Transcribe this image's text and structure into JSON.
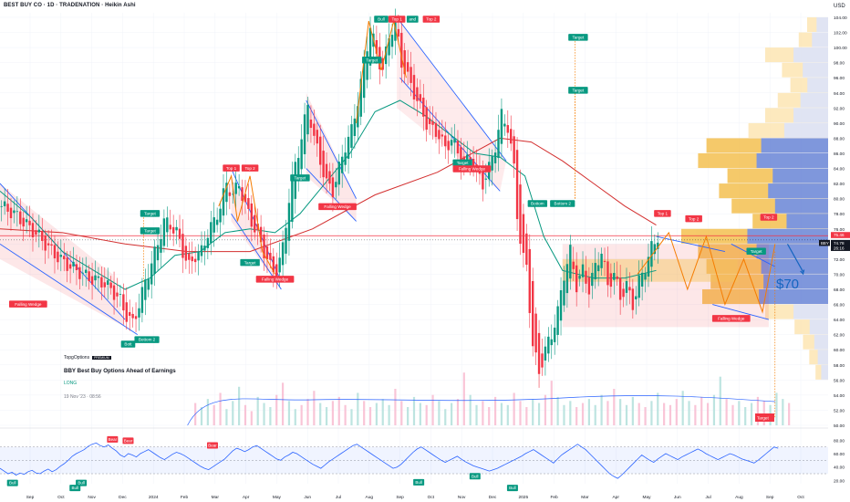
{
  "header": {
    "title": "BEST BUY CO · 1D · TRADENATION · Heikin Ashi",
    "currency": "USD"
  },
  "idea_card": {
    "brand": "TopgOptions",
    "badge": "PREMIUM",
    "title": "BBY Best Buy Options Ahead of Earnings",
    "direction": "LONG",
    "date": "19 Nov '23 · 08:56"
  },
  "annotation": "$70",
  "price_tags": [
    {
      "value": "75.46",
      "color": "#f23645"
    },
    {
      "value": "74.78",
      "color": "#131722"
    },
    {
      "value": "26:16",
      "color": "#131722"
    }
  ],
  "symbol_badge": "BBY",
  "volume_tag": {
    "label": "Target",
    "color": "#f23645"
  },
  "chart_data": [
    {
      "type": "candlestick",
      "x_ticks": [
        "Sep",
        "Oct",
        "Nov",
        "Dec",
        "2024",
        "Feb",
        "Mar",
        "Apr",
        "May",
        "Jun",
        "Jul",
        "Aug",
        "Sep",
        "Oct",
        "Nov",
        "Dec",
        "2025",
        "Feb",
        "Mar",
        "Apr",
        "May",
        "Jun",
        "Jul",
        "Aug",
        "Sep",
        "Oct"
      ],
      "y_ticks": [
        "104.00",
        "102.00",
        "100.00",
        "98.00",
        "96.00",
        "94.00",
        "92.00",
        "90.00",
        "88.00",
        "86.00",
        "84.00",
        "82.00",
        "80.00",
        "78.00",
        "76.00",
        "74.00",
        "72.00",
        "70.00",
        "68.00",
        "66.00",
        "64.00",
        "62.00",
        "60.00",
        "58.00",
        "56.00",
        "54.00",
        "52.00",
        "50.00"
      ],
      "ylim": [
        50,
        104.6
      ],
      "grid": true,
      "close_path": [
        [
          0,
          79
        ],
        [
          4,
          78
        ],
        [
          8,
          76.5
        ],
        [
          12,
          75
        ],
        [
          16,
          73
        ],
        [
          20,
          71.5
        ],
        [
          24,
          70.5
        ],
        [
          28,
          69.5
        ],
        [
          32,
          69
        ],
        [
          35,
          68
        ],
        [
          38,
          66.5
        ],
        [
          40,
          64.5
        ],
        [
          42,
          63.5
        ],
        [
          44,
          66
        ],
        [
          46,
          69
        ],
        [
          48,
          71.5
        ],
        [
          50,
          74
        ],
        [
          52,
          77
        ],
        [
          54,
          76.5
        ],
        [
          56,
          75.5
        ],
        [
          58,
          73
        ],
        [
          60,
          71
        ],
        [
          62,
          72.5
        ],
        [
          64,
          73
        ],
        [
          66,
          75.5
        ],
        [
          68,
          77
        ],
        [
          70,
          79
        ],
        [
          72,
          82
        ],
        [
          74,
          80.5
        ],
        [
          76,
          82
        ],
        [
          78,
          79
        ],
        [
          80,
          77
        ],
        [
          82,
          75
        ],
        [
          84,
          73
        ],
        [
          86,
          71
        ],
        [
          88,
          70
        ],
        [
          90,
          73.5
        ],
        [
          92,
          80
        ],
        [
          94,
          84.5
        ],
        [
          96,
          88
        ],
        [
          98,
          92.5
        ],
        [
          100,
          88
        ],
        [
          102,
          85
        ],
        [
          104,
          82
        ],
        [
          106,
          81
        ],
        [
          108,
          84
        ],
        [
          110,
          87
        ],
        [
          112,
          89
        ],
        [
          114,
          93
        ],
        [
          116,
          97.5
        ],
        [
          118,
          103
        ],
        [
          120,
          99
        ],
        [
          122,
          97
        ],
        [
          124,
          101.5
        ],
        [
          126,
          103.5
        ],
        [
          128,
          98
        ],
        [
          130,
          96
        ],
        [
          132,
          94
        ],
        [
          134,
          92
        ],
        [
          136,
          90
        ],
        [
          138,
          89
        ],
        [
          140,
          88.5
        ],
        [
          142,
          86.5
        ],
        [
          144,
          88
        ],
        [
          146,
          86
        ],
        [
          148,
          84.5
        ],
        [
          150,
          85.5
        ],
        [
          152,
          83.5
        ],
        [
          154,
          82
        ],
        [
          156,
          84
        ],
        [
          158,
          87
        ],
        [
          160,
          91
        ],
        [
          162,
          89.5
        ],
        [
          164,
          84
        ],
        [
          165,
          78
        ],
        [
          166,
          74.5
        ],
        [
          167,
          72
        ],
        [
          168,
          71
        ],
        [
          170,
          60.5
        ],
        [
          172,
          57
        ],
        [
          174,
          60
        ],
        [
          176,
          62
        ],
        [
          178,
          65
        ],
        [
          180,
          70
        ],
        [
          182,
          73
        ],
        [
          184,
          68.5
        ],
        [
          186,
          70.5
        ],
        [
          188,
          68
        ],
        [
          190,
          71
        ],
        [
          192,
          73
        ],
        [
          194,
          68.5
        ],
        [
          196,
          70
        ],
        [
          198,
          67
        ],
        [
          200,
          68.5
        ],
        [
          202,
          66
        ],
        [
          204,
          69
        ],
        [
          206,
          71
        ],
        [
          208,
          73.5
        ],
        [
          210,
          75
        ]
      ],
      "moving_average_50": [
        [
          0,
          81
        ],
        [
          10,
          77.5
        ],
        [
          20,
          73
        ],
        [
          30,
          70.5
        ],
        [
          40,
          68
        ],
        [
          48,
          69.5
        ],
        [
          56,
          72.5
        ],
        [
          64,
          73
        ],
        [
          72,
          75.5
        ],
        [
          80,
          76
        ],
        [
          88,
          75.5
        ],
        [
          96,
          78
        ],
        [
          104,
          82
        ],
        [
          112,
          86
        ],
        [
          120,
          91.5
        ],
        [
          128,
          93
        ],
        [
          136,
          91
        ],
        [
          144,
          88.5
        ],
        [
          152,
          86
        ],
        [
          160,
          85.5
        ],
        [
          168,
          83
        ],
        [
          174,
          75
        ],
        [
          180,
          70.5
        ],
        [
          190,
          69.5
        ],
        [
          200,
          69.5
        ],
        [
          210,
          70.5
        ]
      ],
      "moving_average_200": [
        [
          0,
          76
        ],
        [
          20,
          75.5
        ],
        [
          40,
          74
        ],
        [
          60,
          73
        ],
        [
          80,
          73
        ],
        [
          100,
          76
        ],
        [
          120,
          80.5
        ],
        [
          140,
          83.5
        ],
        [
          160,
          88
        ],
        [
          170,
          87.5
        ],
        [
          180,
          85
        ],
        [
          190,
          82
        ],
        [
          200,
          79
        ],
        [
          210,
          76.5
        ]
      ],
      "patterns": [
        {
          "label": "Falling Wedge",
          "x": 9,
          "y": 66.5
        },
        {
          "label": "Bott",
          "x": 41,
          "y": 61.2
        },
        {
          "label": "Bottom 2",
          "x": 47,
          "y": 61.8
        },
        {
          "label": "Target",
          "x": 48,
          "y": 78.5
        },
        {
          "label": "Target",
          "x": 48,
          "y": 76.2
        },
        {
          "label": "Top 1",
          "x": 74,
          "y": 84.5
        },
        {
          "label": "Top 2",
          "x": 80,
          "y": 84.5
        },
        {
          "label": "Target",
          "x": 80,
          "y": 72
        },
        {
          "label": "Falling Wedge",
          "x": 88,
          "y": 69.8
        },
        {
          "label": "Target",
          "x": 96,
          "y": 83.2
        },
        {
          "label": "Falling Wedge",
          "x": 108,
          "y": 79.4
        },
        {
          "label": "Target",
          "x": 119,
          "y": 98.8
        },
        {
          "label": "Bull",
          "x": 122,
          "y": 104.2
        },
        {
          "label": "Top 1",
          "x": 127,
          "y": 104.2
        },
        {
          "label": "and",
          "x": 132,
          "y": 104.2
        },
        {
          "label": "Top 2",
          "x": 138,
          "y": 104.2
        },
        {
          "label": "Target",
          "x": 148,
          "y": 85.2
        },
        {
          "label": "Falling Wedge",
          "x": 151,
          "y": 84.4
        },
        {
          "label": "Bottom",
          "x": 172,
          "y": 79.8
        },
        {
          "label": "Bottom 2",
          "x": 180,
          "y": 79.8
        },
        {
          "label": "Target",
          "x": 185,
          "y": 101.8
        },
        {
          "label": "Target",
          "x": 185,
          "y": 94.8
        },
        {
          "label": "Top 1",
          "x": 212,
          "y": 78.5
        },
        {
          "label": "Top 2",
          "x": 222,
          "y": 77.8
        },
        {
          "label": "Top 2",
          "x": 246,
          "y": 78
        },
        {
          "label": "Target",
          "x": 242,
          "y": 73.5
        },
        {
          "label": "Falling Wedge",
          "x": 234,
          "y": 64.6
        }
      ]
    },
    {
      "type": "bar",
      "series": [
        {
          "values": [
            1.1,
            0.9,
            1.3,
            1.0,
            1.6,
            0.8,
            1.2,
            1.9,
            1.0,
            0.7,
            1.4,
            1.1,
            0.9,
            1.5,
            2.1,
            1.2,
            0.8,
            1.0,
            1.3,
            1.7,
            1.1,
            0.9,
            1.2,
            1.4,
            1.0,
            0.8,
            1.6,
            1.2,
            0.9,
            1.1,
            1.3,
            1.0,
            1.8,
            1.2,
            0.9,
            1.4,
            1.1,
            1.0,
            1.5,
            1.2,
            0.8,
            1.1,
            1.3,
            2.6,
            1.5,
            1.0,
            1.2,
            0.9,
            1.4,
            1.1,
            1.0,
            1.6,
            1.2,
            0.9,
            1.3,
            1.1,
            1.5,
            2.2,
            1.4,
            1.0,
            1.2,
            0.9,
            1.1,
            1.3,
            1.0,
            1.5,
            1.2,
            1.8,
            1.3,
            1.0,
            1.4,
            1.1,
            0.9,
            1.2,
            1.6,
            1.1,
            1.0,
            1.3,
            1.7,
            1.2,
            1.0,
            1.4,
            1.1,
            1.5,
            2.4,
            1.3,
            1.0,
            1.2,
            0.9,
            1.1,
            1.4,
            1.2,
            1.0,
            1.6,
            1.3,
            1.1
          ]
        }
      ]
    },
    {
      "type": "line",
      "y_ticks": [
        "80.00",
        "60.00",
        "40.00",
        "20.00"
      ],
      "ylim": [
        15,
        90
      ],
      "band": [
        30,
        70
      ],
      "series": [
        {
          "values": [
            38,
            34,
            30,
            32,
            28,
            31,
            29,
            33,
            35,
            31,
            30,
            34,
            37,
            33,
            36,
            41,
            45,
            50,
            56,
            60,
            63,
            66,
            71,
            74,
            76,
            72,
            70,
            73,
            68,
            64,
            58,
            55,
            60,
            58,
            55,
            60,
            63,
            66,
            62,
            58,
            54,
            51,
            55,
            59,
            62,
            60,
            57,
            53,
            49,
            45,
            41,
            38,
            36,
            40,
            44,
            48,
            52,
            58,
            64,
            68,
            66,
            63,
            66,
            70,
            72,
            68,
            64,
            60,
            56,
            52,
            50,
            55,
            58,
            62,
            60,
            56,
            52,
            48,
            44,
            41,
            38,
            43,
            48,
            52,
            56,
            60,
            64,
            68,
            72,
            74,
            70,
            66,
            62,
            58,
            54,
            50,
            46,
            42,
            38,
            40,
            44,
            50,
            56,
            62,
            67,
            70,
            66,
            62,
            58,
            54,
            50,
            47,
            50,
            53,
            56,
            52,
            48,
            45,
            42,
            40,
            38,
            36,
            34,
            36,
            38,
            41,
            44,
            47,
            50,
            53,
            56,
            60,
            63,
            66,
            62,
            58,
            54,
            50,
            46,
            52,
            58,
            62,
            66,
            70,
            74,
            70,
            66,
            60,
            54,
            48,
            42,
            36,
            30,
            26,
            23,
            28,
            34,
            40,
            46,
            52,
            58,
            54,
            50,
            47,
            52,
            56,
            60,
            57,
            54,
            51,
            55,
            58,
            61,
            64,
            67,
            64,
            60,
            57,
            54,
            51,
            54,
            57,
            60,
            58,
            55,
            52,
            50,
            48,
            46,
            50,
            55,
            60,
            65,
            70,
            68
          ]
        }
      ],
      "signals": [
        {
          "label": "Bull",
          "x": 4,
          "y": 21
        },
        {
          "label": "Bull",
          "x": 24,
          "y": 13.5
        },
        {
          "label": "Bull",
          "x": 26,
          "y": 21
        },
        {
          "label": "Bear",
          "x": 36,
          "y": 86
        },
        {
          "label": "Bear",
          "x": 41,
          "y": 84
        },
        {
          "label": "Bear",
          "x": 68,
          "y": 77
        },
        {
          "label": "Bull",
          "x": 134,
          "y": 22
        },
        {
          "label": "Bull",
          "x": 152,
          "y": 31
        },
        {
          "label": "Bull",
          "x": 164,
          "y": 13.5
        }
      ]
    }
  ]
}
